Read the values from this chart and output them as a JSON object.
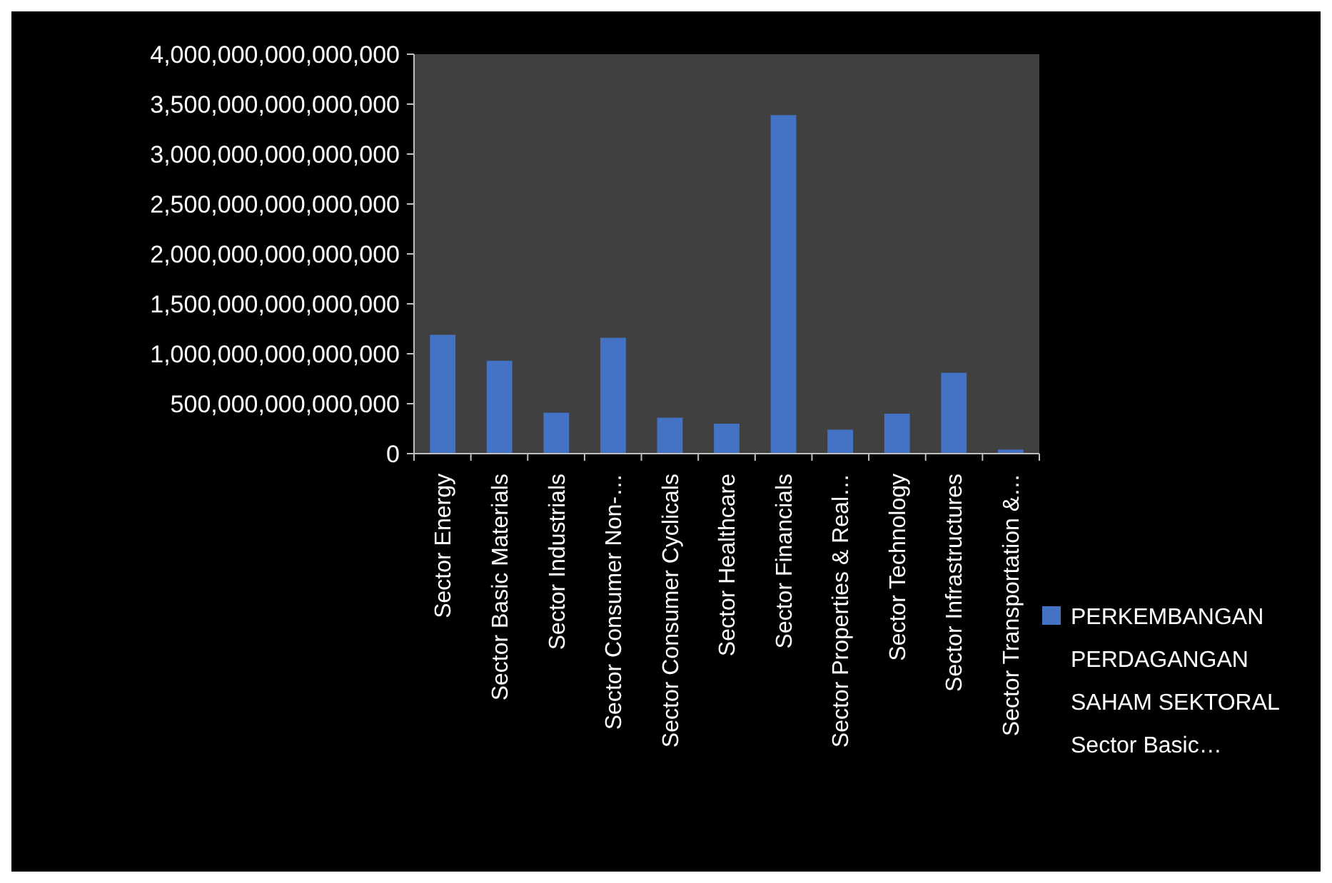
{
  "chart_data": {
    "type": "bar",
    "categories": [
      "Sector Energy",
      "Sector Basic Materials",
      "Sector Industrials",
      "Sector Consumer Non-…",
      "Sector Consumer Cyclicals",
      "Sector Healthcare",
      "Sector Financials",
      "Sector Properties & Real…",
      "Sector Technology",
      "Sector Infrastructures",
      "Sector Transportation &…"
    ],
    "series": [
      {
        "name": "PERKEMBANGAN PERDAGANGAN SAHAM SEKTORAL Sector Basic…",
        "color": "#4472c4",
        "values": [
          1190000000000000,
          930000000000000,
          410000000000000,
          1160000000000000,
          360000000000000,
          300000000000000,
          3390000000000000,
          240000000000000,
          400000000000000,
          810000000000000,
          40000000000000
        ]
      }
    ],
    "ylim": [
      0,
      4000000000000000
    ],
    "yticks": [
      0,
      {
        "value": 500000000000000,
        "label": "500,000,000,000,000"
      },
      {
        "value": 1000000000000000,
        "label": "1,000,000,000,000,000"
      },
      {
        "value": 1500000000000000,
        "label": "1,500,000,000,000,000"
      },
      {
        "value": 2000000000000000,
        "label": "2,000,000,000,000,000"
      },
      {
        "value": 2500000000000000,
        "label": "2,500,000,000,000,000"
      },
      {
        "value": 3000000000000000,
        "label": "3,000,000,000,000,000"
      },
      {
        "value": 3500000000000000,
        "label": "3,500,000,000,000,000"
      },
      {
        "value": 4000000000000000,
        "label": "4,000,000,000,000,000"
      }
    ],
    "grid": false,
    "legend": "right"
  }
}
